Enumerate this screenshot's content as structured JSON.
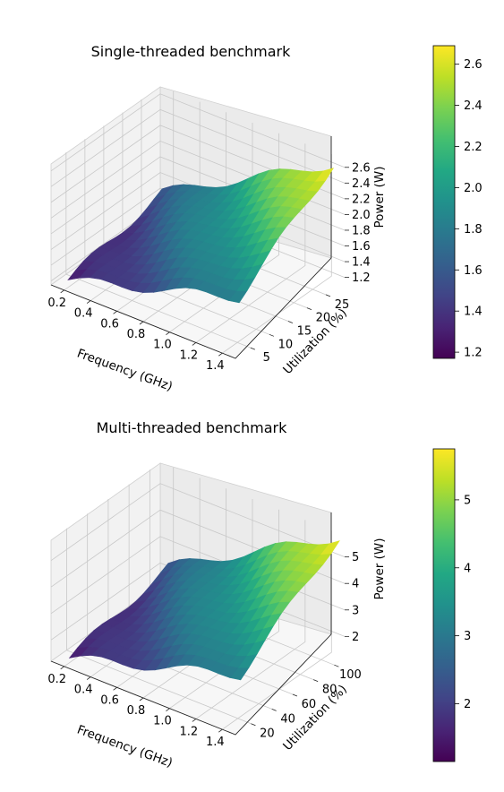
{
  "chart_data": [
    {
      "type": "surface3d",
      "title": "Single-threaded benchmark",
      "xlabel": "Frequency (GHz)",
      "ylabel": "Utilization (%)",
      "zlabel": "Power (W)",
      "x_ticks": [
        "0.2",
        "0.4",
        "0.6",
        "0.8",
        "1.0",
        "1.2",
        "1.4"
      ],
      "y_ticks": [
        "5",
        "10",
        "15",
        "20",
        "25"
      ],
      "z_ticks": [
        "1.2",
        "1.4",
        "1.6",
        "1.8",
        "2.0",
        "2.2",
        "2.4",
        "2.6"
      ],
      "colorbar_ticks": [
        "1.2",
        "1.4",
        "1.6",
        "1.8",
        "2.0",
        "2.2",
        "2.4",
        "2.6"
      ],
      "xlim": [
        0.1,
        1.5
      ],
      "ylim": [
        1,
        30
      ],
      "zlim": [
        1.15,
        2.7
      ],
      "colorbar_range": [
        1.17,
        2.69
      ],
      "surface_range": {
        "frequency": [
          0.2,
          1.5
        ],
        "utilization": [
          2,
          27
        ]
      },
      "colormap": "viridis",
      "grid": true
    },
    {
      "type": "surface3d",
      "title": "Multi-threaded benchmark",
      "xlabel": "Frequency (GHz)",
      "ylabel": "Utilization (%)",
      "zlabel": "Power (W)",
      "x_ticks": [
        "0.2",
        "0.4",
        "0.6",
        "0.8",
        "1.0",
        "1.2",
        "1.4"
      ],
      "y_ticks": [
        "20",
        "40",
        "60",
        "80",
        "100"
      ],
      "z_ticks": [
        "2",
        "3",
        "4",
        "5"
      ],
      "colorbar_ticks": [
        "2",
        "3",
        "4",
        "5"
      ],
      "xlim": [
        0.1,
        1.5
      ],
      "ylim": [
        5,
        110
      ],
      "zlim": [
        1.2,
        5.8
      ],
      "colorbar_range": [
        1.15,
        5.75
      ],
      "surface_range": {
        "frequency": [
          0.2,
          1.5
        ],
        "utilization": [
          10,
          105
        ]
      },
      "colormap": "viridis",
      "grid": true
    }
  ]
}
